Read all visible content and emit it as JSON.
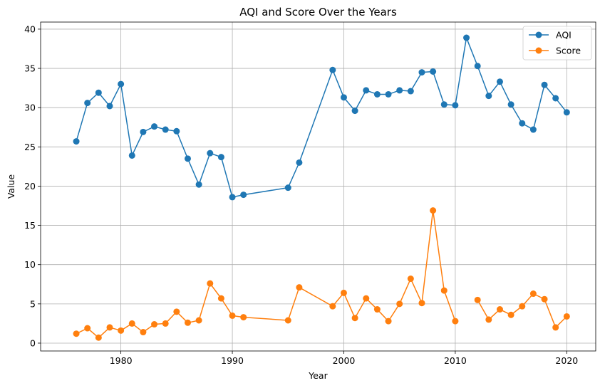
{
  "chart_data": {
    "type": "line",
    "title": "AQI and Score Over the Years",
    "xlabel": "Year",
    "ylabel": "Value",
    "xlim": [
      1972.8,
      2022.6
    ],
    "ylim": [
      -1.0,
      40.9
    ],
    "xticks": [
      1980,
      1990,
      2000,
      2010,
      2020
    ],
    "yticks": [
      0,
      5,
      10,
      15,
      20,
      25,
      30,
      35,
      40
    ],
    "grid": true,
    "legend_position": "top-right",
    "colors": {
      "AQI": "#1f77b4",
      "Score": "#ff7f0e",
      "grid": "#b0b0b0"
    },
    "series": [
      {
        "name": "AQI",
        "x": [
          1976,
          1977,
          1978,
          1979,
          1980,
          1981,
          1982,
          1983,
          1984,
          1985,
          1986,
          1987,
          1988,
          1989,
          1990,
          1991,
          1995,
          1996,
          1999,
          2000,
          2001,
          2002,
          2003,
          2004,
          2005,
          2006,
          2007,
          2008,
          2009,
          2010,
          2011,
          2012,
          2013,
          2014,
          2015,
          2016,
          2017,
          2018,
          2019,
          2020
        ],
        "y": [
          25.7,
          30.6,
          31.9,
          30.2,
          33.0,
          23.9,
          26.9,
          27.6,
          27.2,
          27.0,
          23.5,
          20.2,
          24.2,
          23.7,
          18.6,
          18.9,
          19.8,
          23.0,
          34.8,
          31.3,
          29.6,
          32.2,
          31.7,
          31.7,
          32.2,
          32.1,
          34.5,
          34.6,
          30.4,
          30.3,
          38.9,
          35.3,
          31.5,
          33.3,
          30.4,
          28.0,
          27.2,
          32.9,
          31.2,
          29.4
        ]
      },
      {
        "name": "Score",
        "x": [
          1976,
          1977,
          1978,
          1979,
          1980,
          1981,
          1982,
          1983,
          1984,
          1985,
          1986,
          1987,
          1988,
          1989,
          1990,
          1991,
          1995,
          1996,
          1999,
          2000,
          2001,
          2002,
          2003,
          2004,
          2005,
          2006,
          2007,
          2008,
          2009,
          2010,
          2011,
          2012,
          2013,
          2014,
          2015,
          2016,
          2017,
          2018,
          2019,
          2020
        ],
        "y": [
          1.2,
          1.9,
          0.7,
          2.0,
          1.6,
          2.5,
          1.4,
          2.4,
          2.5,
          4.0,
          2.6,
          2.9,
          7.6,
          5.7,
          3.5,
          3.3,
          2.9,
          7.1,
          4.7,
          6.4,
          3.2,
          5.7,
          4.3,
          2.8,
          5.0,
          8.2,
          5.1,
          16.9,
          6.7,
          2.8,
          null,
          5.5,
          3.0,
          4.3,
          3.6,
          4.7,
          6.3,
          5.6,
          2.0,
          3.4
        ]
      }
    ]
  }
}
